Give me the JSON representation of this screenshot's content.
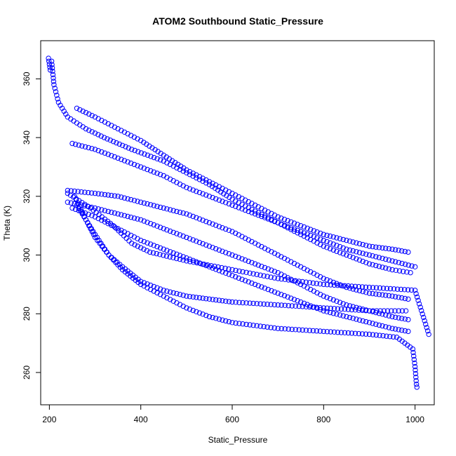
{
  "chart_data": {
    "type": "scatter",
    "title": "ATOM2 Southbound Static_Pressure",
    "xlabel": "Static_Pressure",
    "ylabel": "Theta (K)",
    "xlim": [
      181,
      1042
    ],
    "ylim": [
      249,
      373
    ],
    "x_ticks": [
      200,
      400,
      600,
      800,
      1000
    ],
    "y_ticks": [
      260,
      280,
      300,
      320,
      340,
      360
    ],
    "marker": "open-circle",
    "point_color": "#0000ff",
    "grid": false,
    "series": [
      {
        "values": [
          [
            198,
            367
          ],
          [
            199,
            366
          ],
          [
            200,
            365
          ],
          [
            201,
            364
          ],
          [
            202,
            363
          ]
        ]
      },
      {
        "values": [
          [
            260,
            350
          ],
          [
            300,
            347
          ],
          [
            350,
            343
          ],
          [
            400,
            339
          ],
          [
            450,
            334
          ],
          [
            500,
            329
          ],
          [
            550,
            325
          ],
          [
            600,
            321
          ],
          [
            650,
            317
          ],
          [
            700,
            313
          ],
          [
            750,
            310
          ],
          [
            800,
            307
          ],
          [
            850,
            305
          ],
          [
            900,
            303
          ],
          [
            950,
            302
          ],
          [
            985,
            301
          ]
        ]
      },
      {
        "values": [
          [
            205,
            366
          ],
          [
            210,
            358
          ],
          [
            220,
            352
          ],
          [
            240,
            347
          ],
          [
            280,
            343
          ],
          [
            320,
            340
          ],
          [
            380,
            336
          ],
          [
            450,
            332
          ],
          [
            500,
            328
          ],
          [
            550,
            324
          ],
          [
            600,
            319
          ],
          [
            650,
            315
          ],
          [
            700,
            311
          ],
          [
            750,
            307
          ],
          [
            800,
            303
          ],
          [
            850,
            300
          ],
          [
            900,
            297
          ],
          [
            950,
            295
          ],
          [
            990,
            294
          ]
        ]
      },
      {
        "values": [
          [
            250,
            338
          ],
          [
            300,
            336
          ],
          [
            350,
            333
          ],
          [
            400,
            330
          ],
          [
            450,
            327
          ],
          [
            500,
            323
          ],
          [
            550,
            320
          ],
          [
            600,
            317
          ],
          [
            650,
            314
          ],
          [
            700,
            311
          ],
          [
            750,
            308
          ],
          [
            800,
            305
          ],
          [
            850,
            302
          ],
          [
            900,
            300
          ],
          [
            950,
            298
          ],
          [
            1000,
            296
          ]
        ]
      },
      {
        "values": [
          [
            240,
            322
          ],
          [
            300,
            321
          ],
          [
            350,
            320
          ],
          [
            400,
            318
          ],
          [
            450,
            316
          ],
          [
            500,
            314
          ],
          [
            550,
            311
          ],
          [
            600,
            308
          ],
          [
            650,
            304
          ],
          [
            700,
            300
          ],
          [
            750,
            296
          ],
          [
            800,
            292
          ],
          [
            850,
            289
          ],
          [
            900,
            287
          ],
          [
            950,
            286
          ],
          [
            985,
            285
          ]
        ]
      },
      {
        "values": [
          [
            240,
            318
          ],
          [
            300,
            316
          ],
          [
            350,
            314
          ],
          [
            400,
            312
          ],
          [
            450,
            309
          ],
          [
            500,
            306
          ],
          [
            550,
            303
          ],
          [
            600,
            300
          ],
          [
            650,
            297
          ],
          [
            700,
            294
          ],
          [
            750,
            290
          ],
          [
            800,
            286
          ],
          [
            850,
            283
          ],
          [
            900,
            281
          ],
          [
            950,
            279
          ],
          [
            985,
            278
          ]
        ]
      },
      {
        "values": [
          [
            250,
            316
          ],
          [
            300,
            313
          ],
          [
            350,
            309
          ],
          [
            400,
            305
          ],
          [
            450,
            302
          ],
          [
            500,
            299
          ],
          [
            550,
            296
          ],
          [
            600,
            293
          ],
          [
            650,
            290
          ],
          [
            700,
            287
          ],
          [
            750,
            284
          ],
          [
            800,
            281
          ],
          [
            850,
            279
          ],
          [
            900,
            277
          ],
          [
            950,
            275
          ],
          [
            985,
            274
          ]
        ]
      },
      {
        "values": [
          [
            255,
            320
          ],
          [
            280,
            312
          ],
          [
            300,
            306
          ],
          [
            330,
            300
          ],
          [
            360,
            296
          ],
          [
            400,
            291
          ],
          [
            450,
            288
          ],
          [
            500,
            286
          ],
          [
            550,
            285
          ],
          [
            600,
            284
          ],
          [
            700,
            283
          ],
          [
            800,
            282
          ],
          [
            900,
            281
          ],
          [
            980,
            281
          ]
        ]
      },
      {
        "values": [
          [
            260,
            317
          ],
          [
            300,
            307
          ],
          [
            330,
            300
          ],
          [
            360,
            295
          ],
          [
            400,
            290
          ],
          [
            450,
            286
          ],
          [
            500,
            282
          ],
          [
            550,
            279
          ],
          [
            600,
            277
          ],
          [
            700,
            275
          ],
          [
            800,
            274
          ],
          [
            900,
            273
          ],
          [
            960,
            272
          ],
          [
            995,
            268
          ],
          [
            1000,
            262
          ],
          [
            1003,
            256
          ],
          [
            1004,
            255
          ]
        ]
      },
      {
        "values": [
          [
            240,
            321
          ],
          [
            290,
            316
          ],
          [
            340,
            310
          ],
          [
            380,
            304
          ],
          [
            420,
            301
          ],
          [
            500,
            298
          ],
          [
            600,
            295
          ],
          [
            700,
            292
          ],
          [
            800,
            290
          ],
          [
            900,
            289
          ],
          [
            1000,
            288
          ],
          [
            1030,
            273
          ]
        ]
      }
    ]
  }
}
